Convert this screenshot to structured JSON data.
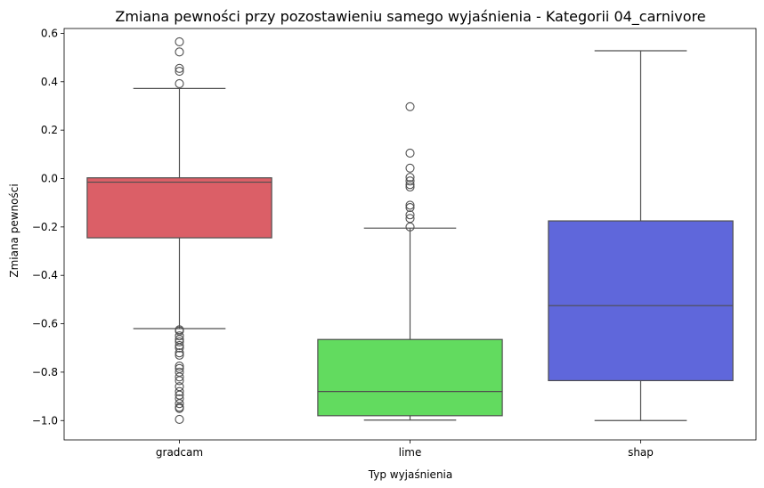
{
  "chart_data": {
    "type": "box",
    "title": "Zmiana pewności przy pozostawieniu samego wyjaśnienia - Kategorii 04_carnivore",
    "xlabel": "Typ wyjaśnienia",
    "ylabel": "Zmiana pewności",
    "ylim": [
      -1.08,
      0.62
    ],
    "yticks": [
      "0.6",
      "0.4",
      "0.2",
      "0.0",
      "−0.2",
      "−0.4",
      "−0.6",
      "−0.8",
      "−1.0"
    ],
    "grid": false,
    "categories": [
      "gradcam",
      "lime",
      "shap"
    ],
    "boxes": [
      {
        "label": "gradcam",
        "color": "#DB5F67",
        "whisker_low": -0.62,
        "q1": -0.245,
        "median": -0.015,
        "q3": 0.003,
        "whisker_high": 0.372,
        "outliers": [
          0.565,
          0.523,
          0.455,
          0.443,
          0.392,
          -0.625,
          -0.63,
          -0.65,
          -0.665,
          -0.675,
          -0.69,
          -0.7,
          -0.72,
          -0.73,
          -0.775,
          -0.785,
          -0.8,
          -0.82,
          -0.835,
          -0.86,
          -0.88,
          -0.895,
          -0.91,
          -0.93,
          -0.945,
          -0.95,
          -0.995
        ]
      },
      {
        "label": "lime",
        "color": "#62DB5F",
        "whisker_low": -0.998,
        "q1": -0.98,
        "median": -0.88,
        "q3": -0.665,
        "whisker_high": -0.205,
        "outliers": [
          0.297,
          0.105,
          0.043,
          0.005,
          -0.01,
          -0.025,
          -0.035,
          -0.11,
          -0.12,
          -0.15,
          -0.165,
          -0.2
        ]
      },
      {
        "label": "shap",
        "color": "#5F67DB",
        "whisker_low": -1.0,
        "q1": -0.835,
        "median": -0.525,
        "q3": -0.175,
        "whisker_high": 0.528,
        "outliers": []
      }
    ]
  }
}
